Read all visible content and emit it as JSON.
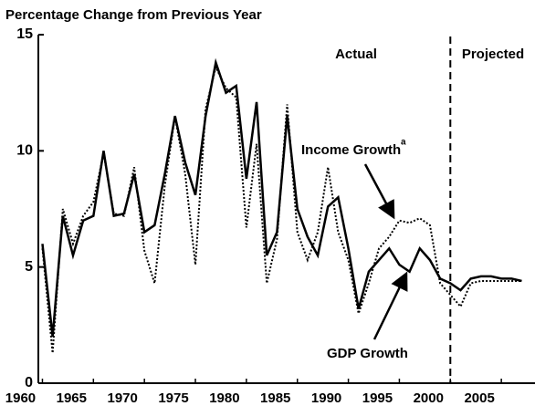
{
  "chart_data": {
    "type": "line",
    "title": "Percentage Change from Previous Year",
    "annotations": {
      "actual": "Actual",
      "projected": "Projected"
    },
    "projection_start": 2000,
    "x": [
      1960,
      1961,
      1962,
      1963,
      1964,
      1965,
      1966,
      1967,
      1968,
      1969,
      1970,
      1971,
      1972,
      1973,
      1974,
      1975,
      1976,
      1977,
      1978,
      1979,
      1980,
      1981,
      1982,
      1983,
      1984,
      1985,
      1986,
      1987,
      1988,
      1989,
      1990,
      1991,
      1992,
      1993,
      1994,
      1995,
      1996,
      1997,
      1998,
      1999,
      2000,
      2001,
      2002,
      2003,
      2004,
      2005,
      2006,
      2007
    ],
    "series": [
      {
        "name": "GDP Growth",
        "color": "#000000",
        "style": "solid",
        "values": [
          6.0,
          2.0,
          7.2,
          5.5,
          7.0,
          7.2,
          10.0,
          7.2,
          7.3,
          9.0,
          6.5,
          6.8,
          9.0,
          11.5,
          9.5,
          8.1,
          11.5,
          13.8,
          12.5,
          12.8,
          8.8,
          12.1,
          5.5,
          6.5,
          11.5,
          7.5,
          6.3,
          5.5,
          7.6,
          8.0,
          5.8,
          3.2,
          4.8,
          5.3,
          5.8,
          5.1,
          4.8,
          5.8,
          5.3,
          4.5,
          4.3,
          4.0,
          4.5,
          4.6,
          4.6,
          4.5,
          4.5,
          4.4
        ]
      },
      {
        "name": "Income Growth",
        "note_mark": "a",
        "color": "#000000",
        "style": "dotted",
        "values": [
          5.8,
          1.3,
          7.5,
          6.0,
          7.2,
          7.8,
          9.9,
          7.3,
          7.2,
          9.3,
          5.7,
          4.3,
          8.5,
          11.5,
          9.0,
          5.1,
          11.8,
          13.6,
          12.7,
          12.3,
          6.7,
          10.3,
          4.3,
          6.2,
          12.0,
          6.5,
          5.3,
          6.5,
          9.3,
          6.5,
          5.3,
          3.0,
          4.3,
          5.8,
          6.3,
          7.0,
          6.9,
          7.1,
          6.8,
          4.3,
          3.8,
          3.3,
          4.3,
          4.4,
          4.4,
          4.4,
          4.4,
          4.4
        ]
      }
    ],
    "xlim": [
      1959.6,
      2008.3
    ],
    "xticks": [
      1960,
      1965,
      1970,
      1975,
      1980,
      1985,
      1990,
      1995,
      2000,
      2005
    ],
    "ylim": [
      0,
      15
    ],
    "yticks": [
      0,
      5,
      10,
      15
    ]
  }
}
